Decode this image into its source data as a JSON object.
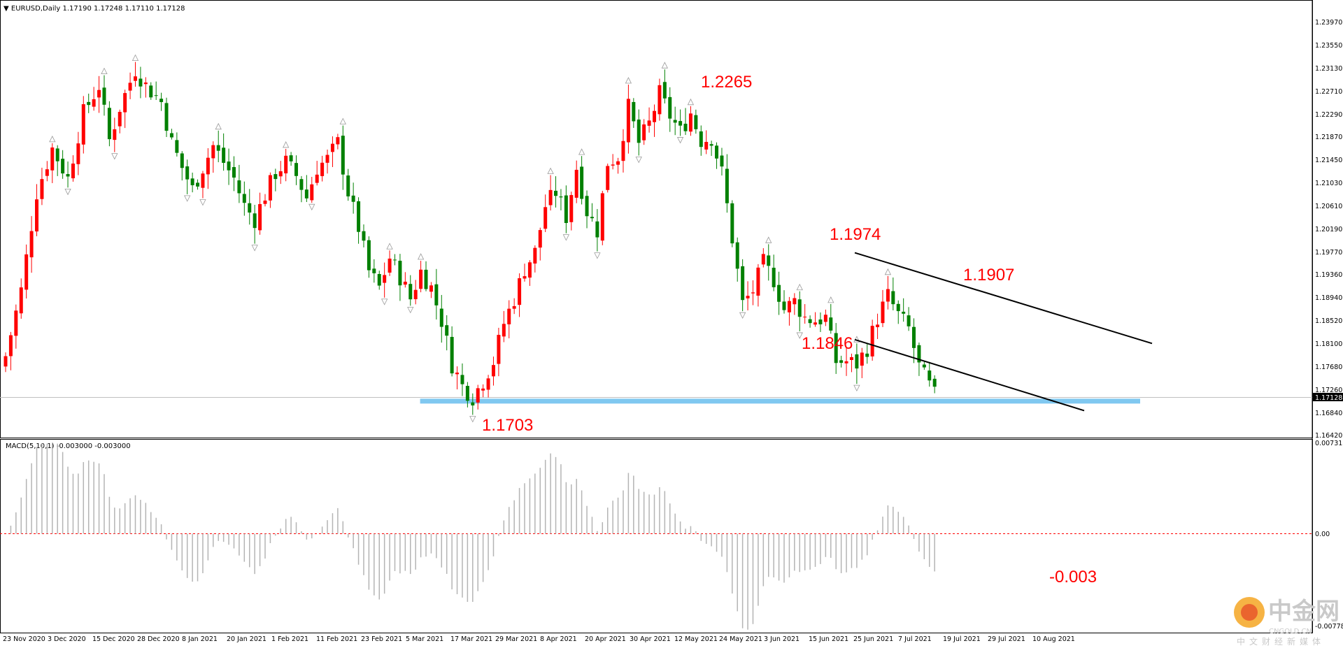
{
  "header": {
    "symbol": "EURUSD,Daily",
    "ohlc": "1.17190 1.17248 1.17110 1.17128",
    "macd_label": "MACD(5,10,1) -0.003000 -0.003000"
  },
  "colors": {
    "bull": "#ff0000",
    "bear": "#008000",
    "support": "#80c8f0",
    "channel": "#000000",
    "annotation": "#ff0000",
    "macd_bar": "#b4b4b4",
    "macd_zero": "#ff0000"
  },
  "chart_data": [
    {
      "type": "candlestick",
      "title": "EURUSD,Daily",
      "ylim": [
        1.1642,
        1.2418
      ],
      "y_ticks": [
        "1.23970",
        "1.23550",
        "1.23130",
        "1.22710",
        "1.22290",
        "1.21870",
        "1.21450",
        "1.21030",
        "1.20610",
        "1.20190",
        "1.19770",
        "1.19360",
        "1.18940",
        "1.18520",
        "1.18100",
        "1.17680",
        "1.17260",
        "1.16840",
        "1.16420"
      ],
      "current_price": "1.17128",
      "x_labels": [
        "23 Nov 2020",
        "3 Dec 2020",
        "15 Dec 2020",
        "28 Dec 2020",
        "8 Jan 2021",
        "20 Jan 2021",
        "1 Feb 2021",
        "11 Feb 2021",
        "23 Feb 2021",
        "5 Mar 2021",
        "17 Mar 2021",
        "29 Mar 2021",
        "8 Apr 2021",
        "20 Apr 2021",
        "30 Apr 2021",
        "12 May 2021",
        "24 May 2021",
        "3 Jun 2021",
        "15 Jun 2021",
        "25 Jun 2021",
        "7 Jul 2021",
        "19 Jul 2021",
        "29 Jul 2021",
        "10 Aug 2021"
      ],
      "price_path": [
        [
          0,
          1.1785
        ],
        [
          3,
          1.1905
        ],
        [
          6,
          1.2085
        ],
        [
          9,
          1.2165
        ],
        [
          12,
          1.211
        ],
        [
          15,
          1.223
        ],
        [
          18,
          1.228
        ],
        [
          20,
          1.218
        ],
        [
          22,
          1.224
        ],
        [
          25,
          1.231
        ],
        [
          27,
          1.228
        ],
        [
          30,
          1.225
        ],
        [
          32,
          1.2175
        ],
        [
          34,
          1.213
        ],
        [
          36,
          1.209
        ],
        [
          38,
          1.213
        ],
        [
          40,
          1.217
        ],
        [
          42,
          1.214
        ],
        [
          44,
          1.211
        ],
        [
          46,
          1.206
        ],
        [
          48,
          1.2035
        ],
        [
          50,
          1.208
        ],
        [
          52,
          1.212
        ],
        [
          54,
          1.214
        ],
        [
          56,
          1.2115
        ],
        [
          58,
          1.2075
        ],
        [
          60,
          1.213
        ],
        [
          62,
          1.2145
        ],
        [
          64,
          1.2175
        ],
        [
          66,
          1.2085
        ],
        [
          68,
          1.202
        ],
        [
          70,
          1.194
        ],
        [
          72,
          1.191
        ],
        [
          74,
          1.1965
        ],
        [
          76,
          1.193
        ],
        [
          78,
          1.189
        ],
        [
          80,
          1.194
        ],
        [
          82,
          1.191
        ],
        [
          84,
          1.185
        ],
        [
          86,
          1.177
        ],
        [
          88,
          1.173
        ],
        [
          90,
          1.171
        ],
        [
          92,
          1.174
        ],
        [
          94,
          1.1775
        ],
        [
          96,
          1.1845
        ],
        [
          98,
          1.189
        ],
        [
          100,
          1.1945
        ],
        [
          102,
          1.1975
        ],
        [
          104,
          1.206
        ],
        [
          106,
          1.2085
        ],
        [
          108,
          1.204
        ],
        [
          110,
          1.213
        ],
        [
          112,
          1.205
        ],
        [
          114,
          1.2015
        ],
        [
          116,
          1.214
        ],
        [
          118,
          1.215
        ],
        [
          120,
          1.224
        ],
        [
          122,
          1.2175
        ],
        [
          124,
          1.221
        ],
        [
          126,
          1.2265
        ],
        [
          128,
          1.2225
        ],
        [
          130,
          1.2195
        ],
        [
          132,
          1.223
        ],
        [
          134,
          1.218
        ],
        [
          136,
          1.2185
        ],
        [
          138,
          1.212
        ],
        [
          140,
          1.2
        ],
        [
          142,
          1.188
        ],
        [
          144,
          1.1905
        ],
        [
          146,
          1.1955
        ],
        [
          148,
          1.1925
        ],
        [
          150,
          1.187
        ],
        [
          152,
          1.1885
        ],
        [
          154,
          1.1855
        ],
        [
          156,
          1.185
        ],
        [
          158,
          1.1855
        ],
        [
          160,
          1.1775
        ],
        [
          162,
          1.1775
        ],
        [
          164,
          1.177
        ],
        [
          166,
          1.18
        ],
        [
          168,
          1.1855
        ],
        [
          170,
          1.1895
        ],
        [
          172,
          1.186
        ],
        [
          174,
          1.1835
        ],
        [
          176,
          1.1765
        ],
        [
          178,
          1.173
        ],
        [
          179,
          1.1713
        ]
      ],
      "annotations": [
        {
          "text": "1.2265",
          "price": 1.2265
        },
        {
          "text": "1.1974",
          "price": 1.1974
        },
        {
          "text": "1.1907",
          "price": 1.1907
        },
        {
          "text": "1.1846",
          "price": 1.1846
        },
        {
          "text": "1.1703",
          "price": 1.1703
        }
      ],
      "support_level": 1.1703,
      "channel_upper": {
        "start_price": 1.1974,
        "end_price": 1.1808
      },
      "channel_lower": {
        "start_price": 1.1815,
        "end_price": 1.1685
      }
    },
    {
      "type": "bar",
      "title": "MACD(5,10,1)",
      "ylim": [
        -0.007787,
        0.007313
      ],
      "y_ticks": [
        "0.007313",
        "0.00",
        "-0.007787"
      ],
      "last_value_label": "-0.003",
      "last_value": -0.003
    }
  ],
  "watermark": {
    "brand": "中金网",
    "site": "CNGOLD.CN",
    "tagline": "中文财经新媒体"
  }
}
